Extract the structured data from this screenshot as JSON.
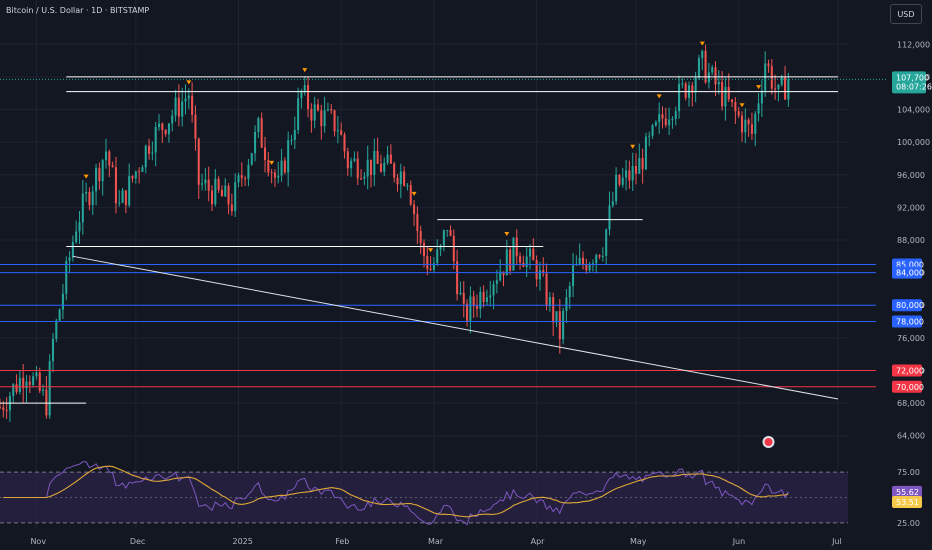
{
  "header": {
    "title": "Bitcoin / U.S. Dollar · 1D · BITSTAMP",
    "currency_button": "USD"
  },
  "colors": {
    "background": "#131722",
    "up": "#26a69a",
    "down": "#ef5350",
    "blue_level": "#2962ff",
    "red_level": "#f23645",
    "white_line": "#ffffff",
    "rsi": "#7e57c2",
    "rsi_ma": "#e0a83a",
    "marker": "#ff9800"
  },
  "chart_data": {
    "type": "candlestick",
    "symbol": "Bitcoin / U.S. Dollar",
    "interval": "1D",
    "exchange": "BITSTAMP",
    "currency": "USD",
    "ylim": [
      62000,
      114000
    ],
    "y_ticks": [
      64000,
      68000,
      72000,
      76000,
      80000,
      84000,
      88000,
      92000,
      96000,
      100000,
      104000,
      108000,
      112000
    ],
    "y_tick_labels": [
      "64,000",
      "68,000",
      "72,000",
      "76,000",
      "80,000",
      "84,000",
      "88,000",
      "92,000",
      "96,000",
      "100,000",
      "104,000",
      "108,000",
      "112,000"
    ],
    "x_ticks": [
      {
        "label": "Nov",
        "date": "2024-11-01"
      },
      {
        "label": "Dec",
        "date": "2024-12-01"
      },
      {
        "label": "2025",
        "date": "2025-01-01"
      },
      {
        "label": "Feb",
        "date": "2025-02-01"
      },
      {
        "label": "Mar",
        "date": "2025-03-01"
      },
      {
        "label": "Apr",
        "date": "2025-04-01"
      },
      {
        "label": "May",
        "date": "2025-05-01"
      },
      {
        "label": "Jun",
        "date": "2025-06-01"
      },
      {
        "label": "Jul",
        "date": "2025-07-01"
      }
    ],
    "x_range": [
      "2024-10-21",
      "2025-07-04"
    ],
    "closes": [
      {
        "date": "2024-10-21",
        "close": 67500
      },
      {
        "date": "2024-10-29",
        "close": 72000
      },
      {
        "date": "2024-11-04",
        "close": 68000
      },
      {
        "date": "2024-11-06",
        "close": 75500
      },
      {
        "date": "2024-11-13",
        "close": 90000
      },
      {
        "date": "2024-11-22",
        "close": 99000
      },
      {
        "date": "2024-11-26",
        "close": 92000
      },
      {
        "date": "2024-12-05",
        "close": 100000
      },
      {
        "date": "2024-12-17",
        "close": 106000
      },
      {
        "date": "2024-12-20",
        "close": 95000
      },
      {
        "date": "2024-12-30",
        "close": 92500
      },
      {
        "date": "2025-01-07",
        "close": 101500
      },
      {
        "date": "2025-01-13",
        "close": 94500
      },
      {
        "date": "2025-01-20",
        "close": 106000
      },
      {
        "date": "2025-01-23",
        "close": 104000
      },
      {
        "date": "2025-01-31",
        "close": 102000
      },
      {
        "date": "2025-02-03",
        "close": 97500
      },
      {
        "date": "2025-02-14",
        "close": 97000
      },
      {
        "date": "2025-02-21",
        "close": 96000
      },
      {
        "date": "2025-02-25",
        "close": 87000
      },
      {
        "date": "2025-02-28",
        "close": 84500
      },
      {
        "date": "2025-03-03",
        "close": 86500
      },
      {
        "date": "2025-03-05",
        "close": 90000
      },
      {
        "date": "2025-03-10",
        "close": 78500
      },
      {
        "date": "2025-03-18",
        "close": 83000
      },
      {
        "date": "2025-03-26",
        "close": 87000
      },
      {
        "date": "2025-04-01",
        "close": 84500
      },
      {
        "date": "2025-04-08",
        "close": 76500
      },
      {
        "date": "2025-04-12",
        "close": 84000
      },
      {
        "date": "2025-04-21",
        "close": 87500
      },
      {
        "date": "2025-04-25",
        "close": 94500
      },
      {
        "date": "2025-05-01",
        "close": 96500
      },
      {
        "date": "2025-05-09",
        "close": 103000
      },
      {
        "date": "2025-05-21",
        "close": 109500
      },
      {
        "date": "2025-05-30",
        "close": 104000
      },
      {
        "date": "2025-06-05",
        "close": 101000
      },
      {
        "date": "2025-06-09",
        "close": 110000
      },
      {
        "date": "2025-06-13",
        "close": 105500
      },
      {
        "date": "2025-06-16",
        "close": 107700
      }
    ],
    "current_price": {
      "value": 107700,
      "label": "107,700",
      "countdown": "08:07:26"
    },
    "horizontal_levels": [
      {
        "value": 85000,
        "label": "85,000",
        "color": "#2962ff"
      },
      {
        "value": 84000,
        "label": "84,000",
        "color": "#2962ff"
      },
      {
        "value": 80000,
        "label": "80,000",
        "color": "#2962ff"
      },
      {
        "value": 78000,
        "label": "78,000",
        "color": "#2962ff"
      },
      {
        "value": 72000,
        "label": "72,000",
        "color": "#f23645"
      },
      {
        "value": 70000,
        "label": "70,000",
        "color": "#f23645"
      }
    ],
    "resistance_lines": [
      {
        "value": 108000,
        "from": "2024-11-10",
        "to": "2025-07-01"
      },
      {
        "value": 106200,
        "from": "2024-11-10",
        "to": "2025-07-01"
      },
      {
        "value": 90500,
        "from": "2025-03-02",
        "to": "2025-05-03"
      },
      {
        "value": 87200,
        "from": "2024-11-10",
        "to": "2025-04-03"
      },
      {
        "value": 68000,
        "from": "2024-10-21",
        "to": "2024-11-16"
      }
    ],
    "trendline": {
      "from": {
        "date": "2024-11-12",
        "value": 86000
      },
      "to": {
        "date": "2025-07-01",
        "value": 68500
      }
    },
    "rsi": {
      "levels": [
        75.0,
        25.0
      ],
      "level_labels": [
        "75.00",
        "25.00"
      ],
      "value": 55.62,
      "value_label": "55.62",
      "ma_value": 53.51,
      "ma_label": "53.51",
      "ylim": [
        20,
        85
      ]
    }
  }
}
